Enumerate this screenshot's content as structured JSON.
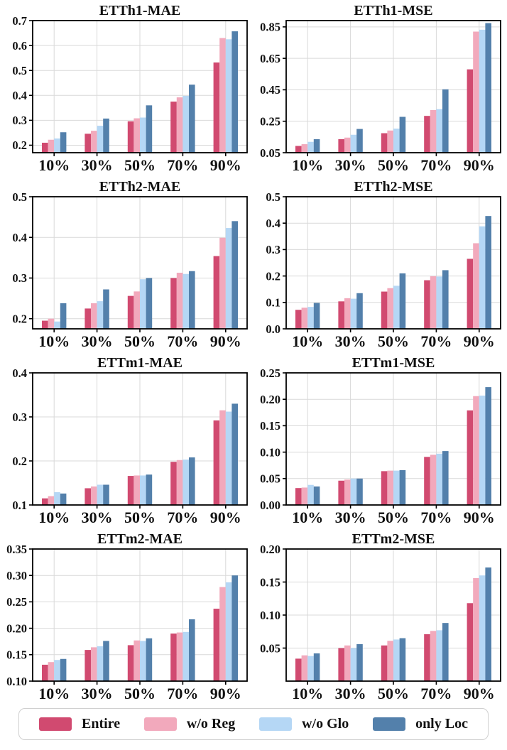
{
  "figure": {
    "description": "Ablation study bar charts on ETT datasets across missing rates",
    "grid": {
      "rows": 4,
      "cols": 2
    }
  },
  "style": {
    "background": "#ffffff",
    "grid_color": "#d9d9d9",
    "axis_color": "#000000",
    "text_color": "#111111",
    "legend_border": "#cfcfcf"
  },
  "legend": {
    "items": [
      {
        "label": "Entire",
        "color": "#d14a70"
      },
      {
        "label": "w/o Reg",
        "color": "#f2a9bc"
      },
      {
        "label": "w/o Glo",
        "color": "#b5d7f5"
      },
      {
        "label": "only Loc",
        "color": "#5380ab"
      }
    ]
  },
  "chart_data": [
    {
      "type": "bar",
      "title": "ETTh1-MAE",
      "categories": [
        "10%",
        "30%",
        "50%",
        "70%",
        "90%"
      ],
      "ylim": [
        0.17,
        0.7
      ],
      "yticks": [
        "0.2",
        "0.3",
        "0.4",
        "0.5",
        "0.6",
        "0.7"
      ],
      "series": [
        {
          "name": "Entire",
          "values": [
            0.21,
            0.246,
            0.296,
            0.375,
            0.532
          ]
        },
        {
          "name": "w/o Reg",
          "values": [
            0.222,
            0.258,
            0.308,
            0.392,
            0.63
          ]
        },
        {
          "name": "w/o Glo",
          "values": [
            0.227,
            0.278,
            0.311,
            0.398,
            0.625
          ]
        },
        {
          "name": "only Loc",
          "values": [
            0.252,
            0.307,
            0.36,
            0.443,
            0.657
          ]
        }
      ]
    },
    {
      "type": "bar",
      "title": "ETTh1-MSE",
      "categories": [
        "10%",
        "30%",
        "50%",
        "70%",
        "90%"
      ],
      "ylim": [
        0.05,
        0.89
      ],
      "yticks": [
        "0.05",
        "0.25",
        "0.45",
        "0.65",
        "0.85"
      ],
      "series": [
        {
          "name": "Entire",
          "values": [
            0.093,
            0.136,
            0.174,
            0.284,
            0.58
          ]
        },
        {
          "name": "w/o Reg",
          "values": [
            0.104,
            0.146,
            0.191,
            0.321,
            0.82
          ]
        },
        {
          "name": "w/o Glo",
          "values": [
            0.119,
            0.164,
            0.203,
            0.327,
            0.832
          ]
        },
        {
          "name": "only Loc",
          "values": [
            0.136,
            0.201,
            0.278,
            0.453,
            0.874
          ]
        }
      ]
    },
    {
      "type": "bar",
      "title": "ETTh2-MAE",
      "categories": [
        "10%",
        "30%",
        "50%",
        "70%",
        "90%"
      ],
      "ylim": [
        0.175,
        0.5
      ],
      "yticks": [
        "0.2",
        "0.3",
        "0.4",
        "0.5"
      ],
      "series": [
        {
          "name": "Entire",
          "values": [
            0.195,
            0.225,
            0.256,
            0.3,
            0.354
          ]
        },
        {
          "name": "w/o Reg",
          "values": [
            0.2,
            0.238,
            0.267,
            0.313,
            0.399
          ]
        },
        {
          "name": "w/o Glo",
          "values": [
            0.193,
            0.243,
            0.297,
            0.31,
            0.423
          ]
        },
        {
          "name": "only Loc",
          "values": [
            0.238,
            0.272,
            0.3,
            0.317,
            0.44
          ]
        }
      ]
    },
    {
      "type": "bar",
      "title": "ETTh2-MSE",
      "categories": [
        "10%",
        "30%",
        "50%",
        "70%",
        "90%"
      ],
      "ylim": [
        0.0,
        0.5
      ],
      "yticks": [
        "0.0",
        "0.1",
        "0.2",
        "0.3",
        "0.4",
        "0.5"
      ],
      "series": [
        {
          "name": "Entire",
          "values": [
            0.072,
            0.104,
            0.141,
            0.184,
            0.265
          ]
        },
        {
          "name": "w/o Reg",
          "values": [
            0.08,
            0.116,
            0.154,
            0.199,
            0.324
          ]
        },
        {
          "name": "w/o Glo",
          "values": [
            0.083,
            0.114,
            0.163,
            0.198,
            0.388
          ]
        },
        {
          "name": "only Loc",
          "values": [
            0.098,
            0.135,
            0.21,
            0.222,
            0.427
          ]
        }
      ]
    },
    {
      "type": "bar",
      "title": "ETTm1-MAE",
      "categories": [
        "10%",
        "30%",
        "50%",
        "70%",
        "90%"
      ],
      "ylim": [
        0.1,
        0.4
      ],
      "yticks": [
        "0.1",
        "0.2",
        "0.3",
        "0.4"
      ],
      "series": [
        {
          "name": "Entire",
          "values": [
            0.115,
            0.138,
            0.166,
            0.198,
            0.292
          ]
        },
        {
          "name": "w/o Reg",
          "values": [
            0.12,
            0.142,
            0.167,
            0.202,
            0.315
          ]
        },
        {
          "name": "w/o Glo",
          "values": [
            0.129,
            0.146,
            0.167,
            0.203,
            0.312
          ]
        },
        {
          "name": "only Loc",
          "values": [
            0.126,
            0.146,
            0.169,
            0.208,
            0.33
          ]
        }
      ]
    },
    {
      "type": "bar",
      "title": "ETTm1-MSE",
      "categories": [
        "10%",
        "30%",
        "50%",
        "70%",
        "90%"
      ],
      "ylim": [
        0.0,
        0.25
      ],
      "yticks": [
        "0.00",
        "0.05",
        "0.10",
        "0.15",
        "0.20",
        "0.25"
      ],
      "series": [
        {
          "name": "Entire",
          "values": [
            0.032,
            0.046,
            0.064,
            0.091,
            0.179
          ]
        },
        {
          "name": "w/o Reg",
          "values": [
            0.033,
            0.048,
            0.065,
            0.095,
            0.206
          ]
        },
        {
          "name": "w/o Glo",
          "values": [
            0.038,
            0.05,
            0.065,
            0.097,
            0.207
          ]
        },
        {
          "name": "only Loc",
          "values": [
            0.035,
            0.05,
            0.066,
            0.102,
            0.223
          ]
        }
      ]
    },
    {
      "type": "bar",
      "title": "ETTm2-MAE",
      "categories": [
        "10%",
        "30%",
        "50%",
        "70%",
        "90%"
      ],
      "ylim": [
        0.1,
        0.35
      ],
      "yticks": [
        "0.10",
        "0.15",
        "0.20",
        "0.25",
        "0.30",
        "0.35"
      ],
      "series": [
        {
          "name": "Entire",
          "values": [
            0.131,
            0.159,
            0.168,
            0.19,
            0.237
          ]
        },
        {
          "name": "w/o Reg",
          "values": [
            0.136,
            0.164,
            0.177,
            0.192,
            0.278
          ]
        },
        {
          "name": "w/o Glo",
          "values": [
            0.14,
            0.166,
            0.176,
            0.193,
            0.287
          ]
        },
        {
          "name": "only Loc",
          "values": [
            0.142,
            0.176,
            0.181,
            0.217,
            0.3
          ]
        }
      ]
    },
    {
      "type": "bar",
      "title": "ETTm2-MSE",
      "categories": [
        "10%",
        "30%",
        "50%",
        "70%",
        "90%"
      ],
      "ylim": [
        0.0,
        0.2
      ],
      "yticks": [
        "0.05",
        "0.10",
        "0.15",
        "0.20"
      ],
      "series": [
        {
          "name": "Entire",
          "values": [
            0.034,
            0.05,
            0.054,
            0.071,
            0.118
          ]
        },
        {
          "name": "w/o Reg",
          "values": [
            0.039,
            0.054,
            0.061,
            0.076,
            0.156
          ]
        },
        {
          "name": "w/o Glo",
          "values": [
            0.038,
            0.05,
            0.063,
            0.077,
            0.16
          ]
        },
        {
          "name": "only Loc",
          "values": [
            0.042,
            0.056,
            0.065,
            0.088,
            0.172
          ]
        }
      ]
    }
  ]
}
